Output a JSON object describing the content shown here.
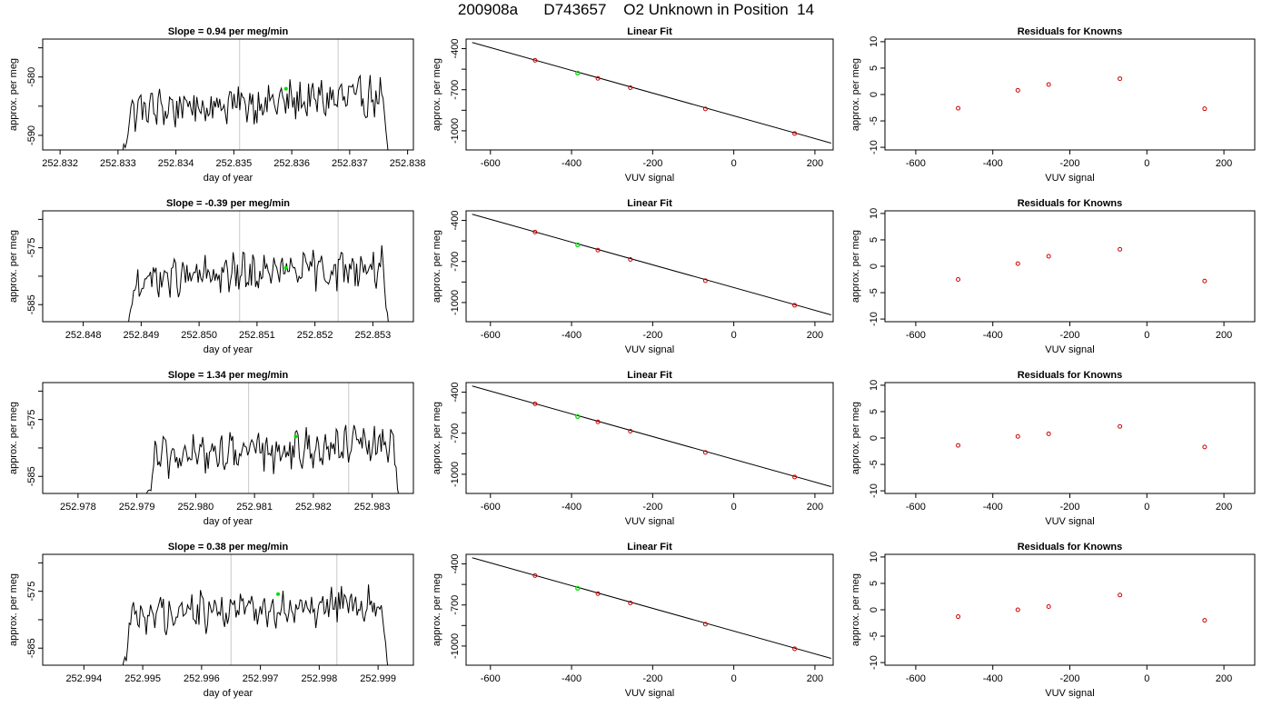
{
  "main_title": "200908a      D743657    O2 Unknown in Position  14",
  "colors": {
    "trace": "#000000",
    "marker": "#00dd00",
    "known": "#cc0000",
    "vline": "#c8c8c8",
    "frame": "#000000"
  },
  "chart_data": [
    {
      "type": "line",
      "panel": "slope",
      "row": 0,
      "title": "Slope =  0.94  per meg/min",
      "xlabel": "day of year",
      "ylabel": "approx. per meg",
      "xlim": [
        252.8317,
        252.8381
      ],
      "ylim": [
        -592.5,
        -573.5
      ],
      "xticks": [
        "252.832",
        "252.833",
        "252.834",
        "252.835",
        "252.836",
        "252.837",
        "252.838"
      ],
      "yticks": [
        "-580",
        "-590"
      ],
      "ytick_values": [
        -580,
        -590
      ],
      "trace_start": 252.833,
      "trace_end": 252.8377,
      "trace_base": -584.5,
      "vlines": [
        252.8351,
        252.8368
      ],
      "marker": {
        "x": 252.8359,
        "y": -582.0
      }
    },
    {
      "type": "scatter",
      "panel": "linear_fit",
      "row": 0,
      "title": "Linear Fit",
      "xlabel": "VUV signal",
      "ylabel": "approx. per meg",
      "xlim": [
        -660,
        245
      ],
      "ylim": [
        -1140,
        -330
      ],
      "xticks": [
        "-600",
        "-400",
        "-200",
        "0",
        "200"
      ],
      "xtick_values": [
        -600,
        -400,
        -200,
        0,
        200
      ],
      "yticks": [
        "-400",
        "-700",
        "-1000"
      ],
      "ytick_values": [
        -400,
        -700,
        -1000
      ],
      "line": {
        "x": [
          -645,
          240
        ],
        "y": [
          -355,
          -1090
        ]
      },
      "known_points": {
        "x": [
          -490,
          -335,
          -255,
          -70,
          150
        ],
        "y": [
          -485,
          -617,
          -685,
          -840,
          -1020
        ]
      },
      "unknown_point": {
        "x": -385,
        "y": -578
      }
    },
    {
      "type": "scatter",
      "panel": "residuals",
      "row": 0,
      "title": "Residuals for Knowns",
      "xlabel": "VUV signal",
      "ylabel": "approx. per meg",
      "xlim": [
        -680,
        280
      ],
      "ylim": [
        -10.5,
        10.5
      ],
      "xticks": [
        "-600",
        "-400",
        "-200",
        "0",
        "200"
      ],
      "xtick_values": [
        -600,
        -400,
        -200,
        0,
        200
      ],
      "yticks": [
        "10",
        "5",
        "0",
        "-5",
        "-10"
      ],
      "ytick_values": [
        10,
        5,
        0,
        -5,
        -10
      ],
      "points": {
        "x": [
          -490,
          -335,
          -255,
          -70,
          150
        ],
        "y": [
          -2.6,
          0.8,
          1.9,
          3.0,
          -2.7
        ]
      }
    },
    {
      "type": "line",
      "panel": "slope",
      "row": 1,
      "title": "Slope =  -0.39  per meg/min",
      "xlabel": "day of year",
      "ylabel": "approx. per meg",
      "xlim": [
        252.8473,
        252.8537
      ],
      "ylim": [
        -588,
        -568.5
      ],
      "xticks": [
        "252.848",
        "252.849",
        "252.850",
        "252.851",
        "252.852",
        "252.853"
      ],
      "yticks": [
        "-575",
        "-585"
      ],
      "ytick_values": [
        -575,
        -585
      ],
      "trace_start": 252.8487,
      "trace_end": 252.8533,
      "trace_base": -579.5,
      "vlines": [
        252.8507,
        252.8524
      ],
      "marker": {
        "x": 252.8515,
        "y": -578.5
      }
    },
    {
      "type": "scatter",
      "panel": "linear_fit",
      "row": 1,
      "title": "Linear Fit",
      "xlabel": "VUV signal",
      "ylabel": "approx. per meg",
      "xlim": [
        -660,
        245
      ],
      "ylim": [
        -1140,
        -330
      ],
      "xticks": [
        "-600",
        "-400",
        "-200",
        "0",
        "200"
      ],
      "xtick_values": [
        -600,
        -400,
        -200,
        0,
        200
      ],
      "yticks": [
        "-400",
        "-700",
        "-1000"
      ],
      "ytick_values": [
        -400,
        -700,
        -1000
      ],
      "line": {
        "x": [
          -645,
          240
        ],
        "y": [
          -355,
          -1090
        ]
      },
      "known_points": {
        "x": [
          -490,
          -335,
          -255,
          -70,
          150
        ],
        "y": [
          -485,
          -617,
          -685,
          -840,
          -1020
        ]
      },
      "unknown_point": {
        "x": -385,
        "y": -578
      }
    },
    {
      "type": "scatter",
      "panel": "residuals",
      "row": 1,
      "title": "Residuals for Knowns",
      "xlabel": "VUV signal",
      "ylabel": "approx. per meg",
      "xlim": [
        -680,
        280
      ],
      "ylim": [
        -10.5,
        10.5
      ],
      "xticks": [
        "-600",
        "-400",
        "-200",
        "0",
        "200"
      ],
      "xtick_values": [
        -600,
        -400,
        -200,
        0,
        200
      ],
      "yticks": [
        "10",
        "5",
        "0",
        "-5",
        "-10"
      ],
      "ytick_values": [
        10,
        5,
        0,
        -5,
        -10
      ],
      "points": {
        "x": [
          -490,
          -335,
          -255,
          -70,
          150
        ],
        "y": [
          -2.5,
          0.5,
          1.9,
          3.2,
          -2.8
        ]
      }
    },
    {
      "type": "line",
      "panel": "slope",
      "row": 2,
      "title": "Slope =  1.34  per meg/min",
      "xlabel": "day of year",
      "ylabel": "approx. per meg",
      "xlim": [
        252.9774,
        252.9837
      ],
      "ylim": [
        -588,
        -568.5
      ],
      "xticks": [
        "252.978",
        "252.979",
        "252.980",
        "252.981",
        "252.982",
        "252.983"
      ],
      "yticks": [
        "-575",
        "-585"
      ],
      "ytick_values": [
        -575,
        -585
      ],
      "trace_start": 252.9791,
      "trace_end": 252.9835,
      "trace_base": -580.5,
      "vlines": [
        252.9809,
        252.9826
      ],
      "marker": {
        "x": 252.9817,
        "y": -578.0
      }
    },
    {
      "type": "scatter",
      "panel": "linear_fit",
      "row": 2,
      "title": "Linear Fit",
      "xlabel": "VUV signal",
      "ylabel": "approx. per meg",
      "xlim": [
        -660,
        245
      ],
      "ylim": [
        -1140,
        -330
      ],
      "xticks": [
        "-600",
        "-400",
        "-200",
        "0",
        "200"
      ],
      "xtick_values": [
        -600,
        -400,
        -200,
        0,
        200
      ],
      "yticks": [
        "-400",
        "-700",
        "-1000"
      ],
      "ytick_values": [
        -400,
        -700,
        -1000
      ],
      "line": {
        "x": [
          -645,
          240
        ],
        "y": [
          -355,
          -1090
        ]
      },
      "known_points": {
        "x": [
          -490,
          -335,
          -255,
          -70,
          150
        ],
        "y": [
          -485,
          -617,
          -685,
          -840,
          -1020
        ]
      },
      "unknown_point": {
        "x": -385,
        "y": -578
      }
    },
    {
      "type": "scatter",
      "panel": "residuals",
      "row": 2,
      "title": "Residuals for Knowns",
      "xlabel": "VUV signal",
      "ylabel": "approx. per meg",
      "xlim": [
        -680,
        280
      ],
      "ylim": [
        -10.5,
        10.5
      ],
      "xticks": [
        "-600",
        "-400",
        "-200",
        "0",
        "200"
      ],
      "xtick_values": [
        -600,
        -400,
        -200,
        0,
        200
      ],
      "yticks": [
        "10",
        "5",
        "0",
        "-5",
        "-10"
      ],
      "ytick_values": [
        10,
        5,
        0,
        -5,
        -10
      ],
      "points": {
        "x": [
          -490,
          -335,
          -255,
          -70,
          150
        ],
        "y": [
          -1.4,
          0.3,
          0.8,
          2.2,
          -1.7
        ]
      }
    },
    {
      "type": "line",
      "panel": "slope",
      "row": 3,
      "title": "Slope =  0.38  per meg/min",
      "xlabel": "day of year",
      "ylabel": "approx. per meg",
      "xlim": [
        252.9933,
        252.9996
      ],
      "ylim": [
        -588,
        -568.5
      ],
      "xticks": [
        "252.994",
        "252.995",
        "252.996",
        "252.997",
        "252.998",
        "252.999"
      ],
      "yticks": [
        "-575",
        "-585"
      ],
      "ytick_values": [
        -575,
        -585
      ],
      "trace_start": 252.9946,
      "trace_end": 252.9992,
      "trace_base": -578.0,
      "vlines": [
        252.9965,
        252.9983
      ],
      "marker": {
        "x": 252.9973,
        "y": -575.5
      }
    },
    {
      "type": "scatter",
      "panel": "linear_fit",
      "row": 3,
      "title": "Linear Fit",
      "xlabel": "VUV signal",
      "ylabel": "approx. per meg",
      "xlim": [
        -660,
        245
      ],
      "ylim": [
        -1140,
        -330
      ],
      "xticks": [
        "-600",
        "-400",
        "-200",
        "0",
        "200"
      ],
      "xtick_values": [
        -600,
        -400,
        -200,
        0,
        200
      ],
      "yticks": [
        "-400",
        "-700",
        "-1000"
      ],
      "ytick_values": [
        -400,
        -700,
        -1000
      ],
      "line": {
        "x": [
          -645,
          240
        ],
        "y": [
          -355,
          -1090
        ]
      },
      "known_points": {
        "x": [
          -490,
          -335,
          -255,
          -70,
          150
        ],
        "y": [
          -485,
          -617,
          -685,
          -840,
          -1020
        ]
      },
      "unknown_point": {
        "x": -385,
        "y": -578
      }
    },
    {
      "type": "scatter",
      "panel": "residuals",
      "row": 3,
      "title": "Residuals for Knowns",
      "xlabel": "VUV signal",
      "ylabel": "approx. per meg",
      "xlim": [
        -680,
        280
      ],
      "ylim": [
        -10.5,
        10.5
      ],
      "xticks": [
        "-600",
        "-400",
        "-200",
        "0",
        "200"
      ],
      "xtick_values": [
        -600,
        -400,
        -200,
        0,
        200
      ],
      "yticks": [
        "10",
        "5",
        "0",
        "-5",
        "-10"
      ],
      "ytick_values": [
        10,
        5,
        0,
        -5,
        -10
      ],
      "points": {
        "x": [
          -490,
          -335,
          -255,
          -70,
          150
        ],
        "y": [
          -1.3,
          0.0,
          0.6,
          2.8,
          -2.0
        ]
      }
    }
  ]
}
